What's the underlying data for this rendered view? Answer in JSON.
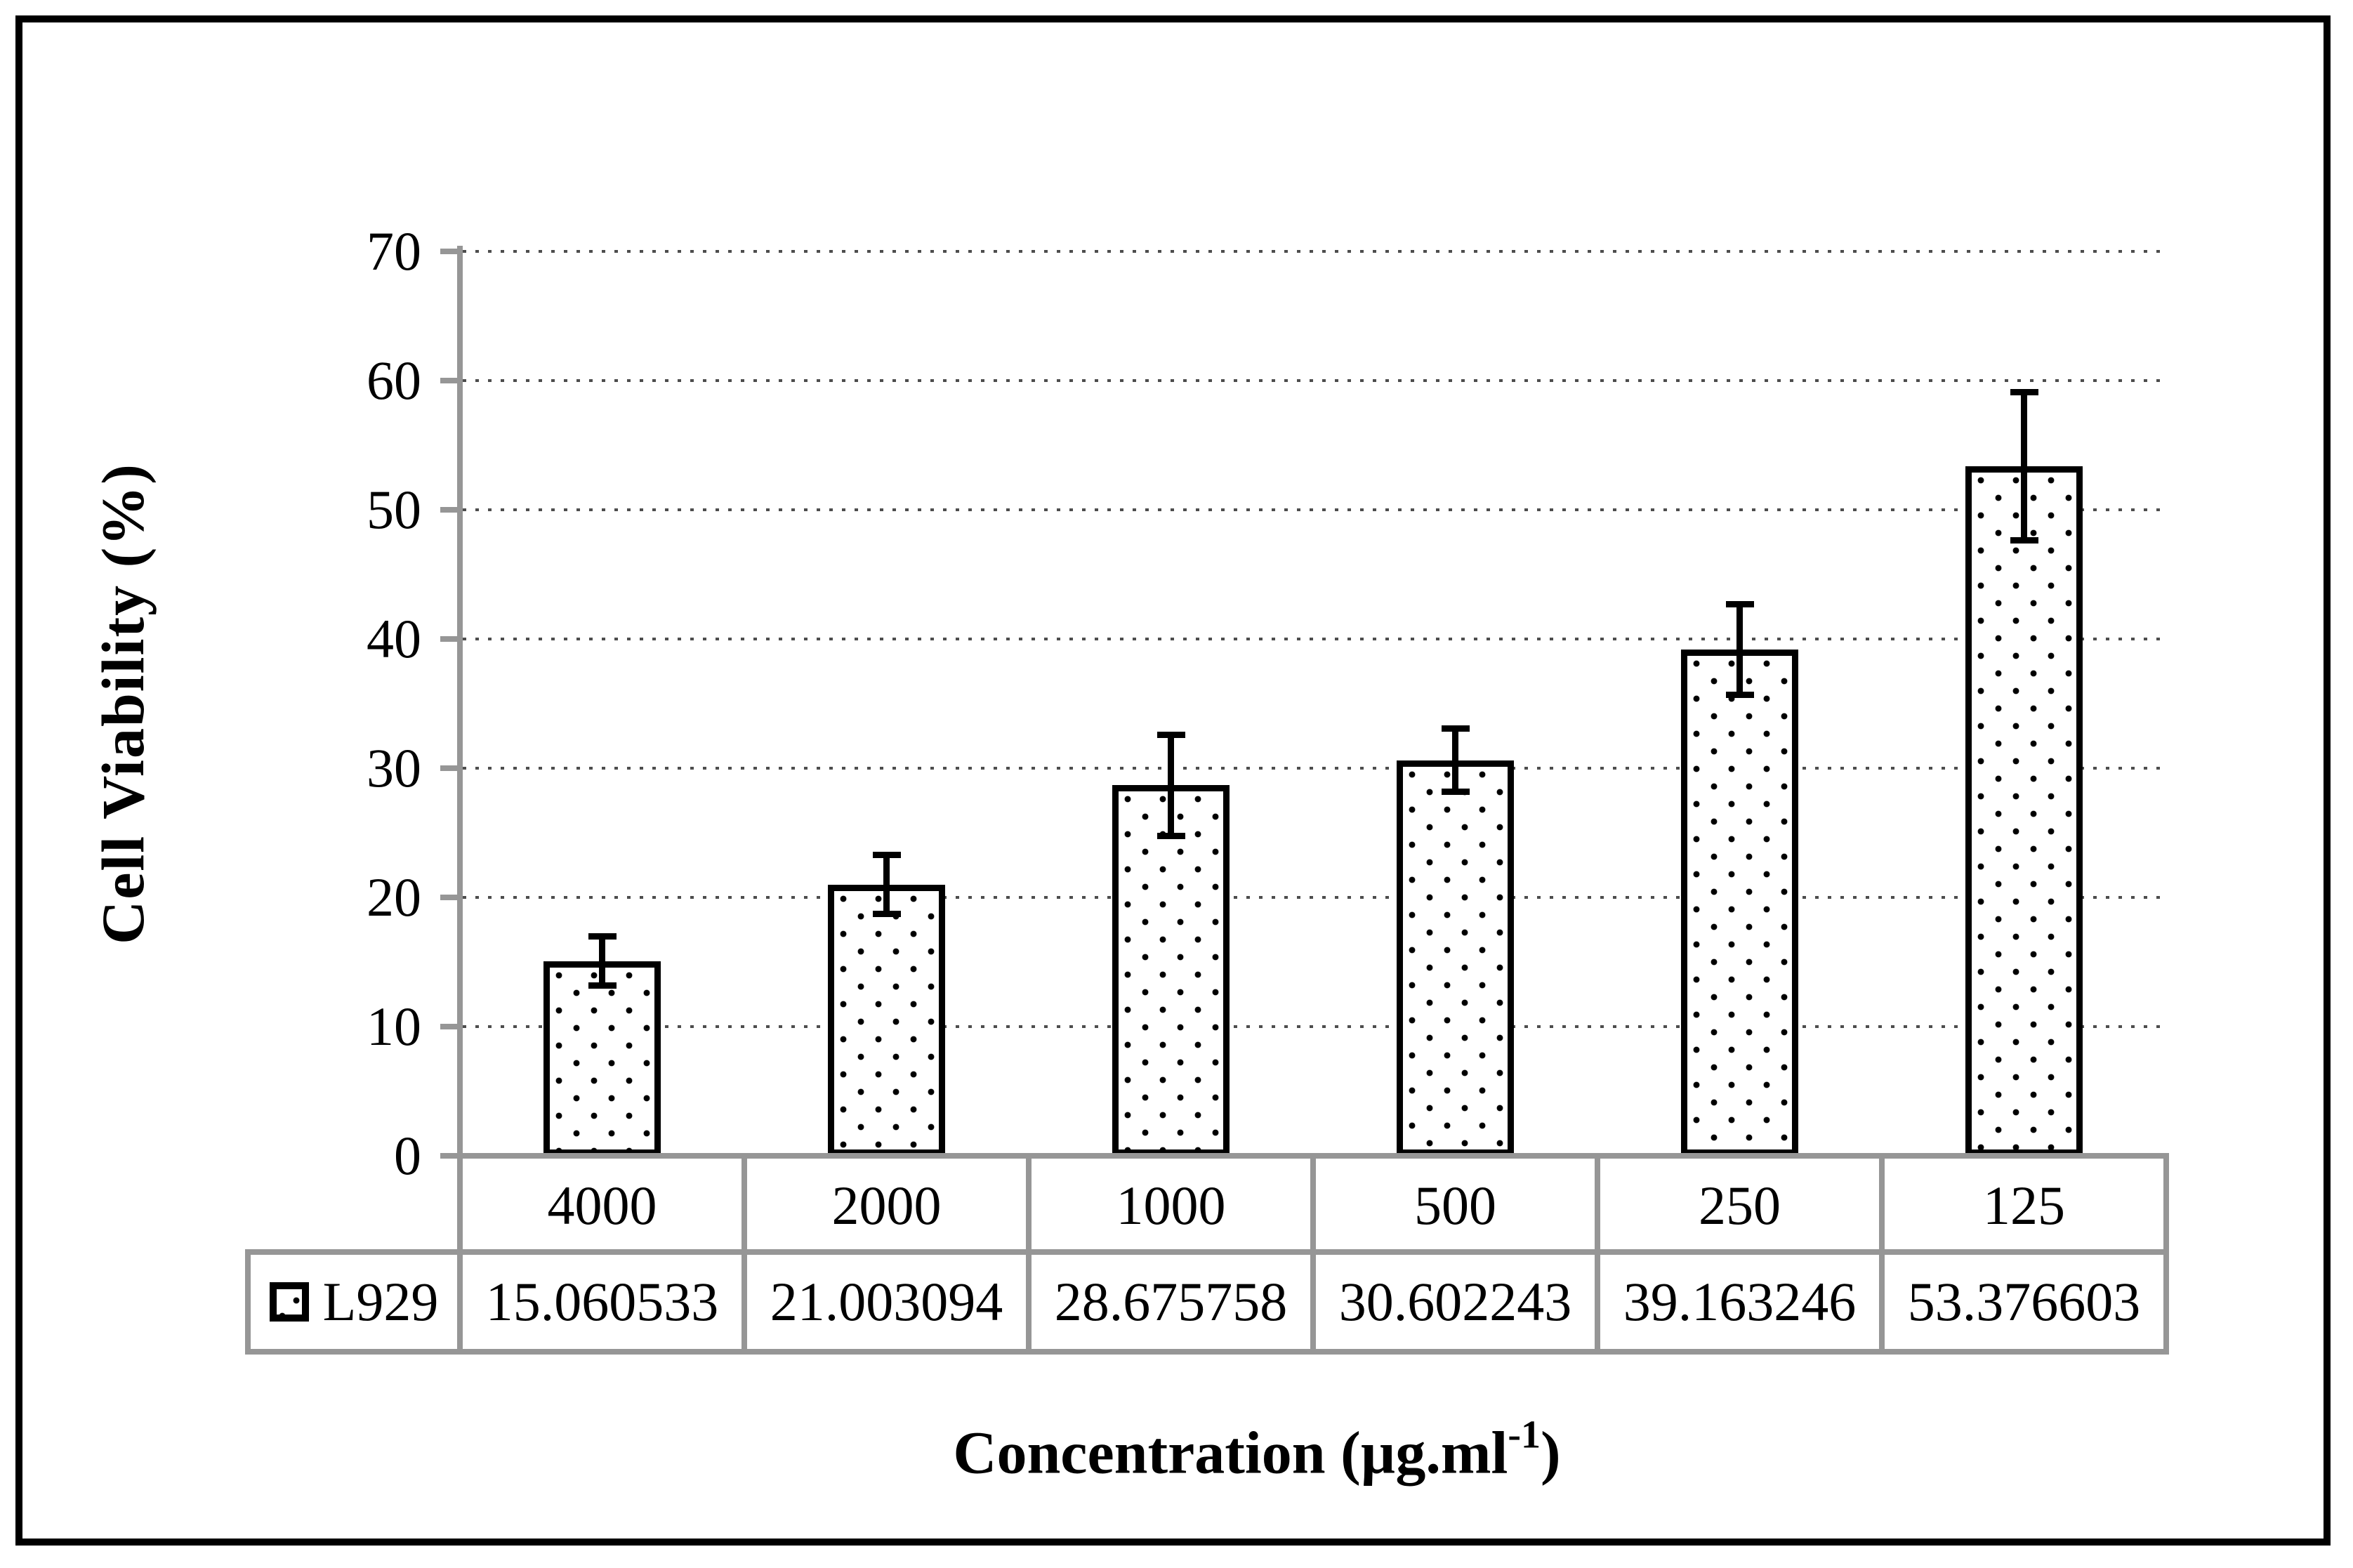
{
  "chart_data": {
    "type": "bar",
    "ylabel": "Cell Viability (%)",
    "xlabel_parts": {
      "text": "Concentration (µg.ml",
      "sup": "-1",
      "end": ")"
    },
    "categories": [
      "4000",
      "2000",
      "1000",
      "500",
      "250",
      "125"
    ],
    "series": [
      {
        "name": "L929",
        "values": [
          15.060533,
          21.003094,
          28.675758,
          30.602243,
          39.163246,
          53.376603
        ],
        "errors": [
          1.9,
          2.3,
          3.9,
          2.45,
          3.5,
          5.75
        ]
      }
    ],
    "y_ticks": [
      0,
      10,
      20,
      30,
      40,
      50,
      60,
      70
    ],
    "ylim": [
      0,
      70
    ],
    "grid": "horizontal-dotted",
    "legend_position": "data-table-left"
  },
  "table": {
    "legend_label": "L929",
    "values": [
      "15.060533",
      "21.003094",
      "28.675758",
      "30.602243",
      "39.163246",
      "53.376603"
    ]
  },
  "colors": {
    "axis_gray": "#969696",
    "grid_dot": "#4d4d4d",
    "bar_border": "#000000",
    "text": "#000000",
    "background": "#ffffff"
  }
}
